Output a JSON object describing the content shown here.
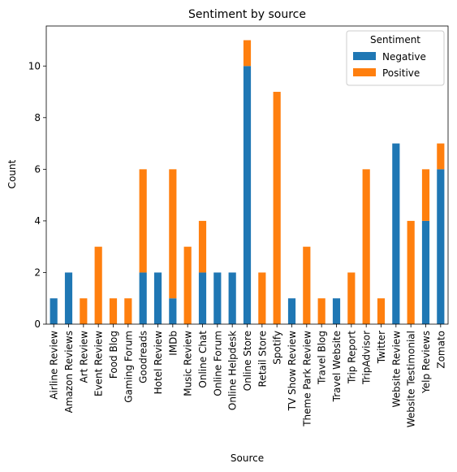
{
  "chart_data": {
    "type": "bar",
    "stacked": true,
    "title": "Sentiment by source",
    "xlabel": "Source",
    "ylabel": "Count",
    "ylim": [
      0,
      11.55
    ],
    "yticks": [
      0,
      2,
      4,
      6,
      8,
      10
    ],
    "grid": false,
    "legend": {
      "title": "Sentiment",
      "placement": "top-right"
    },
    "categories": [
      "Airline Review",
      "Amazon Reviews",
      "Art Review",
      "Event Review",
      "Food Blog",
      "Gaming Forum",
      "Goodreads",
      "Hotel Review",
      "IMDb",
      "Music Review",
      "Online Chat",
      "Online Forum",
      "Online Helpdesk",
      "Online Store",
      "Retail Store",
      "Spotify",
      "TV Show Review",
      "Theme Park Review",
      "Travel Blog",
      "Travel Website",
      "Trip Report",
      "TripAdvisor",
      "Twitter",
      "Website Review",
      "Website Testimonial",
      "Yelp Reviews",
      "Zomato"
    ],
    "series": [
      {
        "name": " Negative",
        "color": "#1f77b4",
        "values": [
          1,
          2,
          0,
          0,
          0,
          0,
          2,
          2,
          1,
          0,
          2,
          2,
          2,
          10,
          0,
          0,
          1,
          0,
          0,
          1,
          0,
          0,
          0,
          7,
          0,
          4,
          6
        ]
      },
      {
        "name": " Positive",
        "color": "#ff7f0e",
        "values": [
          0,
          0,
          1,
          3,
          1,
          1,
          4,
          0,
          5,
          3,
          2,
          0,
          0,
          1,
          2,
          9,
          0,
          3,
          1,
          0,
          2,
          6,
          1,
          0,
          4,
          2,
          1
        ]
      }
    ]
  }
}
